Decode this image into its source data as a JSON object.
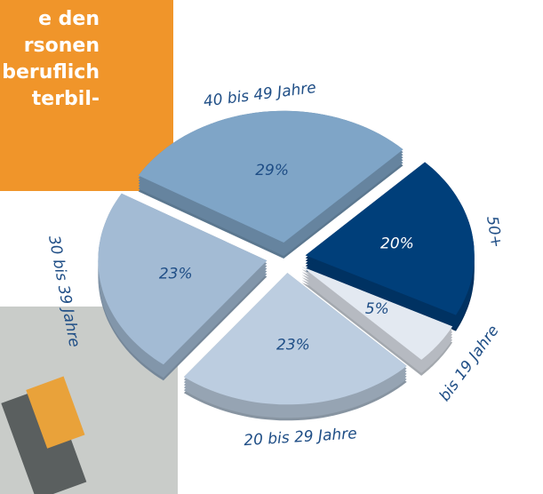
{
  "chart_data": {
    "type": "pie",
    "categories": [
      "50+",
      "bis 19 Jahre",
      "20 bis 29 Jahre",
      "30 bis 39 Jahre",
      "40 bis 49 Jahre"
    ],
    "values": [
      20,
      5,
      23,
      23,
      29
    ],
    "value_labels": [
      "20%",
      "5%",
      "23%",
      "23%",
      "29%"
    ],
    "colors": [
      "#003f7a",
      "#e3e9f1",
      "#bccde0",
      "#a3bbd4",
      "#7fa5c7"
    ],
    "annotations": [
      "e den",
      "rsonen",
      "beruflich",
      "terbil-"
    ]
  }
}
